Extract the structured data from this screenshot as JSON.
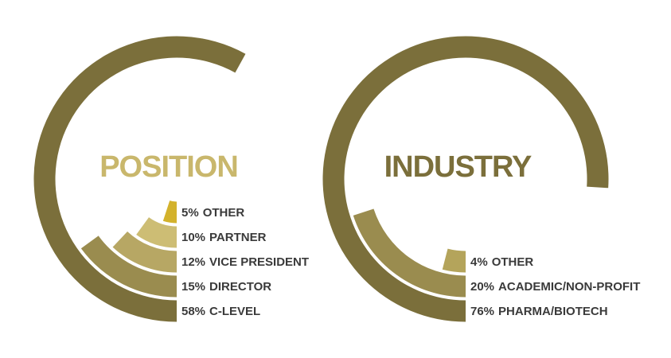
{
  "chart_data": [
    {
      "type": "radialbar",
      "title": "POSITION",
      "title_color": "#c9b76c",
      "categories": [
        "C-LEVEL",
        "DIRECTOR",
        "VICE PRESIDENT",
        "PARTNER",
        "OTHER"
      ],
      "values": [
        58,
        15,
        12,
        10,
        5
      ],
      "value_labels": [
        "58%",
        "15%",
        "12%",
        "10%",
        "5%"
      ],
      "colors": [
        "#7b6f3b",
        "#9a8c4f",
        "#b7a764",
        "#cdbd74",
        "#d3b22c"
      ]
    },
    {
      "type": "radialbar",
      "title": "INDUSTRY",
      "title_color": "#7b6f3b",
      "categories": [
        "PHARMA/BIOTECH",
        "ACADEMIC/NON-PROFIT",
        "OTHER"
      ],
      "values": [
        76,
        20,
        4
      ],
      "value_labels": [
        "76%",
        "20%",
        "4%"
      ],
      "colors": [
        "#7b6f3b",
        "#9a8c4f",
        "#b4a45b"
      ]
    }
  ]
}
